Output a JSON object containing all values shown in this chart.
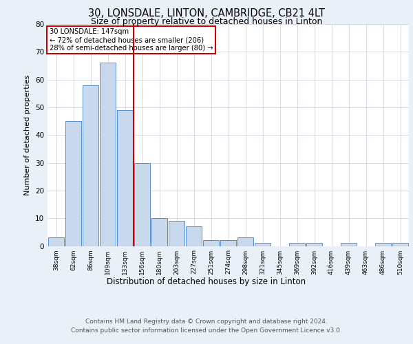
{
  "title1": "30, LONSDALE, LINTON, CAMBRIDGE, CB21 4LT",
  "title2": "Size of property relative to detached houses in Linton",
  "xlabel": "Distribution of detached houses by size in Linton",
  "ylabel": "Number of detached properties",
  "bar_labels": [
    "38sqm",
    "62sqm",
    "86sqm",
    "109sqm",
    "133sqm",
    "156sqm",
    "180sqm",
    "203sqm",
    "227sqm",
    "251sqm",
    "274sqm",
    "298sqm",
    "321sqm",
    "345sqm",
    "369sqm",
    "392sqm",
    "416sqm",
    "439sqm",
    "463sqm",
    "486sqm",
    "510sqm"
  ],
  "bar_values": [
    3,
    45,
    58,
    66,
    49,
    30,
    10,
    9,
    7,
    2,
    2,
    3,
    1,
    0,
    1,
    1,
    0,
    1,
    0,
    1,
    1
  ],
  "bar_color": "#c9d9ed",
  "bar_edge_color": "#5b8fc9",
  "vline_x": 4.5,
  "vline_color": "#cc0000",
  "annotation_text": "30 LONSDALE: 147sqm\n← 72% of detached houses are smaller (206)\n28% of semi-detached houses are larger (80) →",
  "annotation_box_color": "#cc0000",
  "ylim": [
    0,
    80
  ],
  "yticks": [
    0,
    10,
    20,
    30,
    40,
    50,
    60,
    70,
    80
  ],
  "footer1": "Contains HM Land Registry data © Crown copyright and database right 2024.",
  "footer2": "Contains public sector information licensed under the Open Government Licence v3.0.",
  "bg_color": "#eaf0f8",
  "plot_bg_color": "#ffffff",
  "grid_color": "#c8d0dc"
}
